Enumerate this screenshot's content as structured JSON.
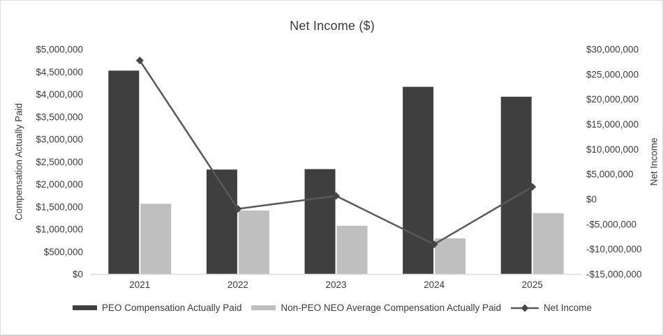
{
  "window": {
    "background": "#ffffff",
    "border_color": "#dcdcdc"
  },
  "chart_data": {
    "type": "combo-bar-line",
    "title": "Net Income ($)",
    "categories": [
      "2021",
      "2022",
      "2023",
      "2024",
      "2025"
    ],
    "series": [
      {
        "name": "PEO Compensation Actually Paid",
        "type": "bar",
        "axis": "left",
        "color": "#3f3f3f",
        "values": [
          4530000,
          2330000,
          2340000,
          4170000,
          3950000
        ]
      },
      {
        "name": "Non-PEO NEO Average Compensation Actually Paid",
        "type": "bar",
        "axis": "left",
        "color": "#bfbfbf",
        "values": [
          1570000,
          1420000,
          1080000,
          800000,
          1360000
        ]
      },
      {
        "name": "Net Income",
        "type": "line",
        "axis": "right",
        "color": "#595959",
        "marker": "diamond",
        "marker_color": "#474747",
        "values": [
          27800000,
          -1900000,
          700000,
          -9000000,
          2500000
        ]
      }
    ],
    "left_axis": {
      "title": "Compensation Actually Paid",
      "min": 0,
      "max": 5000000,
      "step": 500000,
      "tick_labels": [
        "$0",
        "$500,000",
        "$1,000,000",
        "$1,500,000",
        "$2,000,000",
        "$2,500,000",
        "$3,000,000",
        "$3,500,000",
        "$4,000,000",
        "$4,500,000",
        "$5,000,000"
      ]
    },
    "right_axis": {
      "title": "Net Income",
      "min": -15000000,
      "max": 30000000,
      "step": 5000000,
      "tick_labels": [
        "-$15,000,000",
        "-$10,000,000",
        "-$5,000,000",
        "$0",
        "$5,000,000",
        "$10,000,000",
        "$15,000,000",
        "$20,000,000",
        "$25,000,000",
        "$30,000,000"
      ]
    },
    "grid": false,
    "baseline_color": "#d9d9d9",
    "text_color": "#3a3a3a",
    "legend_position": "bottom"
  }
}
